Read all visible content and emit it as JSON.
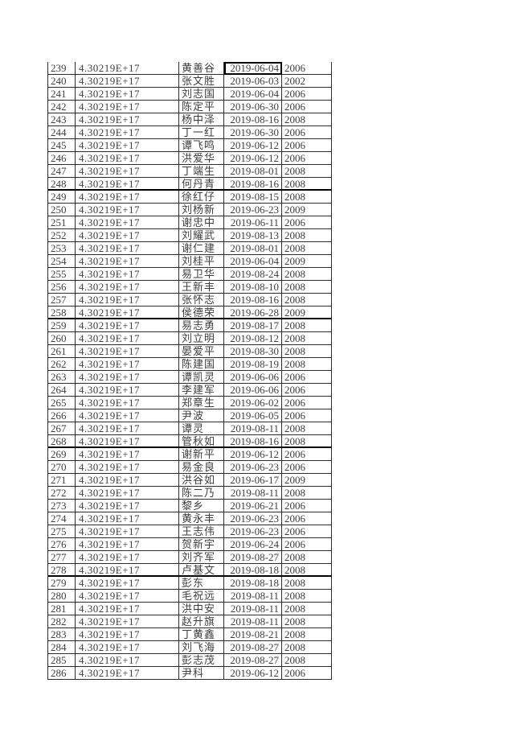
{
  "colors": {
    "background": "#ffffff",
    "grid_border": "#2e2e2e",
    "thick_border": "#000000",
    "selection_border": "#000000",
    "text": "#3f3f3f"
  },
  "table": {
    "columns": [
      "row_number",
      "id_scientific",
      "name",
      "date",
      "year"
    ],
    "selected_cell": {
      "row_number": 239,
      "column": "date"
    },
    "thick_border_after_rows": [
      248,
      258,
      268,
      278
    ],
    "rows": [
      {
        "n": "239",
        "id": "4.30219E+17",
        "name": "黄善谷",
        "date": "2019-06-04",
        "year": "2006"
      },
      {
        "n": "240",
        "id": "4.30219E+17",
        "name": "张文胜",
        "date": "2019-06-03",
        "year": "2002"
      },
      {
        "n": "241",
        "id": "4.30219E+17",
        "name": "刘志国",
        "date": "2019-06-04",
        "year": "2006"
      },
      {
        "n": "242",
        "id": "4.30219E+17",
        "name": "陈定平",
        "date": "2019-06-30",
        "year": "2006"
      },
      {
        "n": "243",
        "id": "4.30219E+17",
        "name": "杨中泽",
        "date": "2019-08-16",
        "year": "2008"
      },
      {
        "n": "244",
        "id": "4.30219E+17",
        "name": "丁一红",
        "date": "2019-06-30",
        "year": "2006"
      },
      {
        "n": "245",
        "id": "4.30219E+17",
        "name": "谭飞鸣",
        "date": "2019-06-12",
        "year": "2006"
      },
      {
        "n": "246",
        "id": "4.30219E+17",
        "name": "洪爱华",
        "date": "2019-06-12",
        "year": "2006"
      },
      {
        "n": "247",
        "id": "4.30219E+17",
        "name": "丁端生",
        "date": "2019-08-01",
        "year": "2008"
      },
      {
        "n": "248",
        "id": "4.30219E+17",
        "name": "何丹青",
        "date": "2019-08-16",
        "year": "2008"
      },
      {
        "n": "249",
        "id": "4.30219E+17",
        "name": "徐红仔",
        "date": "2019-08-15",
        "year": "2008"
      },
      {
        "n": "250",
        "id": "4.30219E+17",
        "name": "刘杨新",
        "date": "2019-06-23",
        "year": "2009"
      },
      {
        "n": "251",
        "id": "4.30219E+17",
        "name": "谢忠中",
        "date": "2019-06-11",
        "year": "2006"
      },
      {
        "n": "252",
        "id": "4.30219E+17",
        "name": "刘耀武",
        "date": "2019-08-13",
        "year": "2008"
      },
      {
        "n": "253",
        "id": "4.30219E+17",
        "name": "谢仁建",
        "date": "2019-08-01",
        "year": "2008"
      },
      {
        "n": "254",
        "id": "4.30219E+17",
        "name": "刘桂平",
        "date": "2019-06-04",
        "year": "2009"
      },
      {
        "n": "255",
        "id": "4.30219E+17",
        "name": "易卫华",
        "date": "2019-08-24",
        "year": "2008"
      },
      {
        "n": "256",
        "id": "4.30219E+17",
        "name": "王新丰",
        "date": "2019-08-10",
        "year": "2008"
      },
      {
        "n": "257",
        "id": "4.30219E+17",
        "name": "张怀志",
        "date": "2019-08-16",
        "year": "2008"
      },
      {
        "n": "258",
        "id": "4.30219E+17",
        "name": "侯德荣",
        "date": "2019-06-28",
        "year": "2009"
      },
      {
        "n": "259",
        "id": "4.30219E+17",
        "name": "易志勇",
        "date": "2019-08-17",
        "year": "2008"
      },
      {
        "n": "260",
        "id": "4.30219E+17",
        "name": "刘立明",
        "date": "2019-08-12",
        "year": "2008"
      },
      {
        "n": "261",
        "id": "4.30219E+17",
        "name": "晏爱平",
        "date": "2019-08-30",
        "year": "2008"
      },
      {
        "n": "262",
        "id": "4.30219E+17",
        "name": "陈建国",
        "date": "2019-08-19",
        "year": "2008"
      },
      {
        "n": "263",
        "id": "4.30219E+17",
        "name": "谭凯灵",
        "date": "2019-06-06",
        "year": "2006"
      },
      {
        "n": "264",
        "id": "4.30219E+17",
        "name": "李建军",
        "date": "2019-06-06",
        "year": "2006"
      },
      {
        "n": "265",
        "id": "4.30219E+17",
        "name": "郑章生",
        "date": "2019-06-02",
        "year": "2006"
      },
      {
        "n": "266",
        "id": "4.30219E+17",
        "name": "尹波",
        "date": "2019-06-05",
        "year": "2006"
      },
      {
        "n": "267",
        "id": "4.30219E+17",
        "name": "谭灵",
        "date": "2019-08-11",
        "year": "2008"
      },
      {
        "n": "268",
        "id": "4.30219E+17",
        "name": "管秋如",
        "date": "2019-08-16",
        "year": "2008"
      },
      {
        "n": "269",
        "id": "4.30219E+17",
        "name": "谢新平",
        "date": "2019-06-12",
        "year": "2006"
      },
      {
        "n": "270",
        "id": "4.30219E+17",
        "name": "易金良",
        "date": "2019-06-23",
        "year": "2006"
      },
      {
        "n": "271",
        "id": "4.30219E+17",
        "name": "洪谷如",
        "date": "2019-06-17",
        "year": "2009"
      },
      {
        "n": "272",
        "id": "4.30219E+17",
        "name": "陈二乃",
        "date": "2019-08-11",
        "year": "2008"
      },
      {
        "n": "273",
        "id": "4.30219E+17",
        "name": "黎乡",
        "date": "2019-06-21",
        "year": "2006"
      },
      {
        "n": "274",
        "id": "4.30219E+17",
        "name": "黄永丰",
        "date": "2019-06-23",
        "year": "2006"
      },
      {
        "n": "275",
        "id": "4.30219E+17",
        "name": "王志伟",
        "date": "2019-06-23",
        "year": "2006"
      },
      {
        "n": "276",
        "id": "4.30219E+17",
        "name": "贺新宇",
        "date": "2019-06-24",
        "year": "2006"
      },
      {
        "n": "277",
        "id": "4.30219E+17",
        "name": "刘齐军",
        "date": "2019-08-27",
        "year": "2008"
      },
      {
        "n": "278",
        "id": "4.30219E+17",
        "name": "卢基文",
        "date": "2019-08-18",
        "year": "2008"
      },
      {
        "n": "279",
        "id": "4.30219E+17",
        "name": "彭东",
        "date": "2019-08-18",
        "year": "2008"
      },
      {
        "n": "280",
        "id": "4.30219E+17",
        "name": "毛祝远",
        "date": "2019-08-11",
        "year": "2008"
      },
      {
        "n": "281",
        "id": "4.30219E+17",
        "name": "洪中安",
        "date": "2019-08-11",
        "year": "2008"
      },
      {
        "n": "282",
        "id": "4.30219E+17",
        "name": "赵升旗",
        "date": "2019-08-11",
        "year": "2008"
      },
      {
        "n": "283",
        "id": "4.30219E+17",
        "name": "丁黄鑫",
        "date": "2019-08-21",
        "year": "2008"
      },
      {
        "n": "284",
        "id": "4.30219E+17",
        "name": "刘飞海",
        "date": "2019-08-27",
        "year": "2008"
      },
      {
        "n": "285",
        "id": "4.30219E+17",
        "name": "彭志茂",
        "date": "2019-08-27",
        "year": "2008"
      },
      {
        "n": "286",
        "id": "4.30219E+17",
        "name": "尹科",
        "date": "2019-06-12",
        "year": "2006"
      }
    ]
  }
}
